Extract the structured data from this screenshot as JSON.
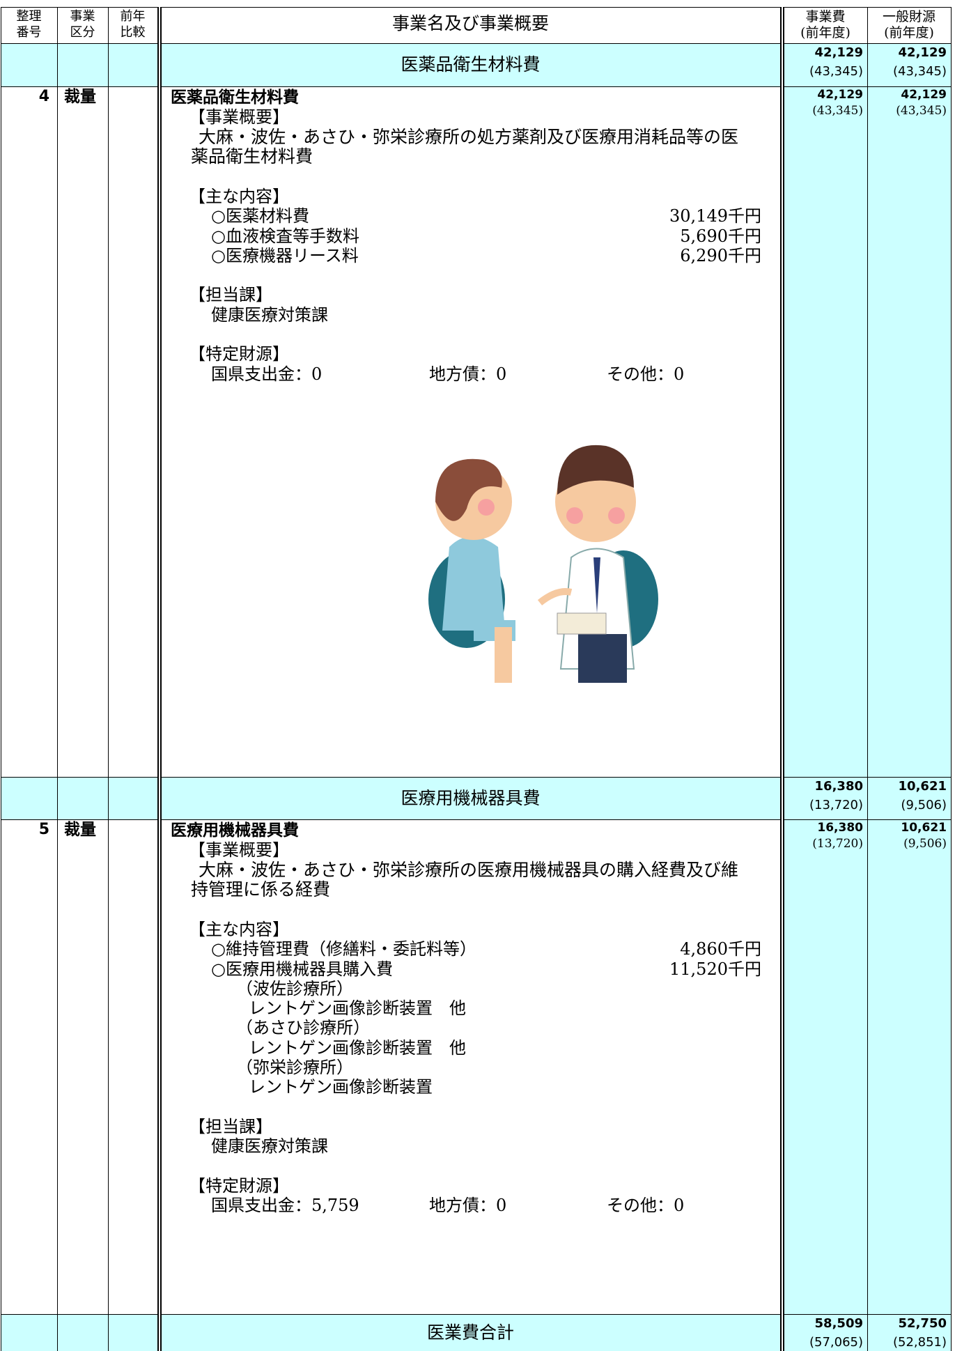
{
  "header": {
    "number": [
      "整理",
      "番号"
    ],
    "category": [
      "事業",
      "区分"
    ],
    "comparison": [
      "前年",
      "比較"
    ],
    "title": "事業名及び事業概要",
    "cost": [
      "事業費",
      "(前年度)"
    ],
    "general": [
      "一般財源",
      "(前年度)"
    ]
  },
  "sections": [
    {
      "title": "医薬品衛生材料費",
      "cost": "42,129",
      "cost_prev": "(43,345)",
      "general": "42,129",
      "general_prev": "(43,345)",
      "item": {
        "number": "4",
        "category": "裁量",
        "name": "医薬品衛生材料費",
        "cost": "42,129",
        "cost_prev": "(43,345)",
        "general": "42,129",
        "general_prev": "(43,345)",
        "blocks": [
          {
            "heading": "【事業概要】",
            "text": "大麻・波佐・あさひ・弥栄診療所の処方薬剤及び医療用消耗品等の医薬品衛生材料費"
          },
          {
            "heading": "【主な内容】",
            "lines": [
              {
                "label": "○医薬材料費",
                "amount": "30,149千円"
              },
              {
                "label": "○血液検査等手数料",
                "amount": "5,690千円"
              },
              {
                "label": "○医療機器リース料",
                "amount": "6,290千円"
              }
            ]
          },
          {
            "heading": "【担当課】",
            "name": "健康医療対策課"
          },
          {
            "heading": "【特定財源】",
            "entries": [
              "国県支出金：0",
              "地方債：0",
              "その他：0"
            ]
          }
        ]
      }
    },
    {
      "title": "医療用機械器具費",
      "cost": "16,380",
      "cost_prev": "(13,720)",
      "general": "10,621",
      "general_prev": "(9,506)",
      "item": {
        "number": "5",
        "category": "裁量",
        "name": "医療用機械器具費",
        "cost": "16,380",
        "cost_prev": "(13,720)",
        "general": "10,621",
        "general_prev": "(9,506)",
        "blocks": [
          {
            "heading": "【事業概要】",
            "text": "大麻・波佐・あさひ・弥栄診療所の医療用機械器具の購入経費及び維持管理に係る経費"
          },
          {
            "heading": "【主な内容】",
            "lines": [
              {
                "label": "○維持管理費（修繕料・委託料等）",
                "amount": "4,860千円"
              },
              {
                "label": "○医療用機械器具購入費",
                "amount": "11,520千円",
                "sub": [
                  {
                    "place": "（波佐診療所）",
                    "equipment": "レントゲン画像診断装置　他"
                  },
                  {
                    "place": "（あさひ診療所）",
                    "equipment": "レントゲン画像診断装置　他"
                  },
                  {
                    "place": "（弥栄診療所）",
                    "equipment": "レントゲン画像診断装置"
                  }
                ]
              }
            ]
          },
          {
            "heading": "【担当課】",
            "name": "健康医療対策課"
          },
          {
            "heading": "【特定財源】",
            "entries": [
              "国県支出金：5,759",
              "地方債：0",
              "その他：0"
            ]
          }
        ]
      }
    }
  ],
  "total": {
    "title": "医業費合計",
    "cost": "58,509",
    "cost_prev": "(57,065)",
    "general": "52,750",
    "general_prev": "(52,851)"
  }
}
